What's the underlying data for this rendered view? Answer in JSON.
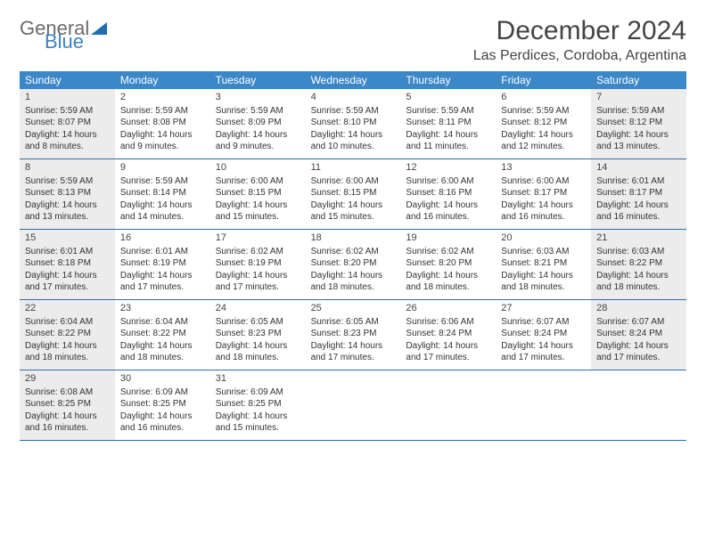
{
  "logo": {
    "text1": "General",
    "text2": "Blue"
  },
  "title": "December 2024",
  "location": "Las Perdices, Cordoba, Argentina",
  "header_bg": "#3b87c8",
  "shaded_bg": "#ececec",
  "weekdays": [
    "Sunday",
    "Monday",
    "Tuesday",
    "Wednesday",
    "Thursday",
    "Friday",
    "Saturday"
  ],
  "weeks": [
    [
      {
        "n": "1",
        "shaded": true,
        "sr": "Sunrise: 5:59 AM",
        "ss": "Sunset: 8:07 PM",
        "d1": "Daylight: 14 hours",
        "d2": "and 8 minutes."
      },
      {
        "n": "2",
        "shaded": false,
        "sr": "Sunrise: 5:59 AM",
        "ss": "Sunset: 8:08 PM",
        "d1": "Daylight: 14 hours",
        "d2": "and 9 minutes."
      },
      {
        "n": "3",
        "shaded": false,
        "sr": "Sunrise: 5:59 AM",
        "ss": "Sunset: 8:09 PM",
        "d1": "Daylight: 14 hours",
        "d2": "and 9 minutes."
      },
      {
        "n": "4",
        "shaded": false,
        "sr": "Sunrise: 5:59 AM",
        "ss": "Sunset: 8:10 PM",
        "d1": "Daylight: 14 hours",
        "d2": "and 10 minutes."
      },
      {
        "n": "5",
        "shaded": false,
        "sr": "Sunrise: 5:59 AM",
        "ss": "Sunset: 8:11 PM",
        "d1": "Daylight: 14 hours",
        "d2": "and 11 minutes."
      },
      {
        "n": "6",
        "shaded": false,
        "sr": "Sunrise: 5:59 AM",
        "ss": "Sunset: 8:12 PM",
        "d1": "Daylight: 14 hours",
        "d2": "and 12 minutes."
      },
      {
        "n": "7",
        "shaded": true,
        "sr": "Sunrise: 5:59 AM",
        "ss": "Sunset: 8:12 PM",
        "d1": "Daylight: 14 hours",
        "d2": "and 13 minutes."
      }
    ],
    [
      {
        "n": "8",
        "shaded": true,
        "sr": "Sunrise: 5:59 AM",
        "ss": "Sunset: 8:13 PM",
        "d1": "Daylight: 14 hours",
        "d2": "and 13 minutes."
      },
      {
        "n": "9",
        "shaded": false,
        "sr": "Sunrise: 5:59 AM",
        "ss": "Sunset: 8:14 PM",
        "d1": "Daylight: 14 hours",
        "d2": "and 14 minutes."
      },
      {
        "n": "10",
        "shaded": false,
        "sr": "Sunrise: 6:00 AM",
        "ss": "Sunset: 8:15 PM",
        "d1": "Daylight: 14 hours",
        "d2": "and 15 minutes."
      },
      {
        "n": "11",
        "shaded": false,
        "sr": "Sunrise: 6:00 AM",
        "ss": "Sunset: 8:15 PM",
        "d1": "Daylight: 14 hours",
        "d2": "and 15 minutes."
      },
      {
        "n": "12",
        "shaded": false,
        "sr": "Sunrise: 6:00 AM",
        "ss": "Sunset: 8:16 PM",
        "d1": "Daylight: 14 hours",
        "d2": "and 16 minutes."
      },
      {
        "n": "13",
        "shaded": false,
        "sr": "Sunrise: 6:00 AM",
        "ss": "Sunset: 8:17 PM",
        "d1": "Daylight: 14 hours",
        "d2": "and 16 minutes."
      },
      {
        "n": "14",
        "shaded": true,
        "sr": "Sunrise: 6:01 AM",
        "ss": "Sunset: 8:17 PM",
        "d1": "Daylight: 14 hours",
        "d2": "and 16 minutes."
      }
    ],
    [
      {
        "n": "15",
        "shaded": true,
        "sr": "Sunrise: 6:01 AM",
        "ss": "Sunset: 8:18 PM",
        "d1": "Daylight: 14 hours",
        "d2": "and 17 minutes."
      },
      {
        "n": "16",
        "shaded": false,
        "sr": "Sunrise: 6:01 AM",
        "ss": "Sunset: 8:19 PM",
        "d1": "Daylight: 14 hours",
        "d2": "and 17 minutes."
      },
      {
        "n": "17",
        "shaded": false,
        "sr": "Sunrise: 6:02 AM",
        "ss": "Sunset: 8:19 PM",
        "d1": "Daylight: 14 hours",
        "d2": "and 17 minutes."
      },
      {
        "n": "18",
        "shaded": false,
        "sr": "Sunrise: 6:02 AM",
        "ss": "Sunset: 8:20 PM",
        "d1": "Daylight: 14 hours",
        "d2": "and 18 minutes."
      },
      {
        "n": "19",
        "shaded": false,
        "sr": "Sunrise: 6:02 AM",
        "ss": "Sunset: 8:20 PM",
        "d1": "Daylight: 14 hours",
        "d2": "and 18 minutes."
      },
      {
        "n": "20",
        "shaded": false,
        "sr": "Sunrise: 6:03 AM",
        "ss": "Sunset: 8:21 PM",
        "d1": "Daylight: 14 hours",
        "d2": "and 18 minutes."
      },
      {
        "n": "21",
        "shaded": true,
        "sr": "Sunrise: 6:03 AM",
        "ss": "Sunset: 8:22 PM",
        "d1": "Daylight: 14 hours",
        "d2": "and 18 minutes."
      }
    ],
    [
      {
        "n": "22",
        "shaded": true,
        "sr": "Sunrise: 6:04 AM",
        "ss": "Sunset: 8:22 PM",
        "d1": "Daylight: 14 hours",
        "d2": "and 18 minutes."
      },
      {
        "n": "23",
        "shaded": false,
        "sr": "Sunrise: 6:04 AM",
        "ss": "Sunset: 8:22 PM",
        "d1": "Daylight: 14 hours",
        "d2": "and 18 minutes."
      },
      {
        "n": "24",
        "shaded": false,
        "sr": "Sunrise: 6:05 AM",
        "ss": "Sunset: 8:23 PM",
        "d1": "Daylight: 14 hours",
        "d2": "and 18 minutes."
      },
      {
        "n": "25",
        "shaded": false,
        "sr": "Sunrise: 6:05 AM",
        "ss": "Sunset: 8:23 PM",
        "d1": "Daylight: 14 hours",
        "d2": "and 17 minutes."
      },
      {
        "n": "26",
        "shaded": false,
        "sr": "Sunrise: 6:06 AM",
        "ss": "Sunset: 8:24 PM",
        "d1": "Daylight: 14 hours",
        "d2": "and 17 minutes."
      },
      {
        "n": "27",
        "shaded": false,
        "sr": "Sunrise: 6:07 AM",
        "ss": "Sunset: 8:24 PM",
        "d1": "Daylight: 14 hours",
        "d2": "and 17 minutes."
      },
      {
        "n": "28",
        "shaded": true,
        "sr": "Sunrise: 6:07 AM",
        "ss": "Sunset: 8:24 PM",
        "d1": "Daylight: 14 hours",
        "d2": "and 17 minutes."
      }
    ],
    [
      {
        "n": "29",
        "shaded": true,
        "sr": "Sunrise: 6:08 AM",
        "ss": "Sunset: 8:25 PM",
        "d1": "Daylight: 14 hours",
        "d2": "and 16 minutes."
      },
      {
        "n": "30",
        "shaded": false,
        "sr": "Sunrise: 6:09 AM",
        "ss": "Sunset: 8:25 PM",
        "d1": "Daylight: 14 hours",
        "d2": "and 16 minutes."
      },
      {
        "n": "31",
        "shaded": false,
        "sr": "Sunrise: 6:09 AM",
        "ss": "Sunset: 8:25 PM",
        "d1": "Daylight: 14 hours",
        "d2": "and 15 minutes."
      },
      null,
      null,
      null,
      null
    ]
  ]
}
